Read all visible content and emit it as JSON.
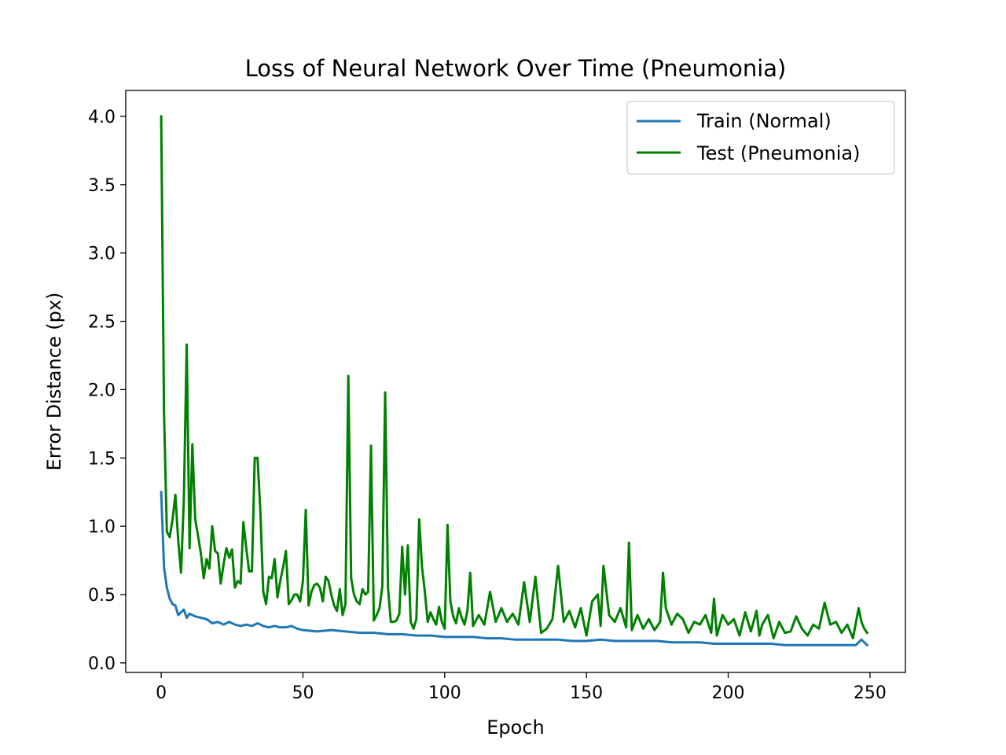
{
  "chart_data": {
    "type": "line",
    "title": "Loss of Neural Network Over Time (Pneumonia)",
    "xlabel": "Epoch",
    "ylabel": "Error Distance (px)",
    "xlim": [
      -12.5,
      262.5
    ],
    "ylim": [
      -0.07,
      4.19
    ],
    "xticks": [
      0,
      50,
      100,
      150,
      200,
      250
    ],
    "yticks": [
      0.0,
      0.5,
      1.0,
      1.5,
      2.0,
      2.5,
      3.0,
      3.5,
      4.0
    ],
    "xtick_labels": [
      "0",
      "50",
      "100",
      "150",
      "200",
      "250"
    ],
    "ytick_labels": [
      "0.0",
      "0.5",
      "1.0",
      "1.5",
      "2.0",
      "2.5",
      "3.0",
      "3.5",
      "4.0"
    ],
    "legend_position": "top-right",
    "series": [
      {
        "name": "Train (Normal)",
        "color": "#1f77b4",
        "x": [
          0,
          1,
          2,
          3,
          4,
          5,
          6,
          7,
          8,
          9,
          10,
          12,
          14,
          16,
          18,
          20,
          22,
          24,
          26,
          28,
          30,
          32,
          34,
          36,
          38,
          40,
          42,
          44,
          46,
          48,
          50,
          55,
          60,
          65,
          70,
          75,
          80,
          85,
          90,
          95,
          100,
          105,
          110,
          115,
          120,
          125,
          130,
          135,
          140,
          145,
          150,
          155,
          160,
          165,
          170,
          175,
          180,
          185,
          190,
          195,
          200,
          205,
          210,
          215,
          220,
          225,
          230,
          235,
          240,
          245,
          247,
          249
        ],
        "values": [
          1.25,
          0.7,
          0.55,
          0.47,
          0.43,
          0.42,
          0.35,
          0.37,
          0.39,
          0.33,
          0.36,
          0.34,
          0.33,
          0.32,
          0.29,
          0.3,
          0.28,
          0.3,
          0.28,
          0.27,
          0.28,
          0.27,
          0.29,
          0.27,
          0.26,
          0.27,
          0.26,
          0.26,
          0.27,
          0.25,
          0.24,
          0.23,
          0.24,
          0.23,
          0.22,
          0.22,
          0.21,
          0.21,
          0.2,
          0.2,
          0.19,
          0.19,
          0.19,
          0.18,
          0.18,
          0.17,
          0.17,
          0.17,
          0.17,
          0.16,
          0.16,
          0.17,
          0.16,
          0.16,
          0.16,
          0.16,
          0.15,
          0.15,
          0.15,
          0.14,
          0.14,
          0.14,
          0.14,
          0.14,
          0.13,
          0.13,
          0.13,
          0.13,
          0.13,
          0.13,
          0.17,
          0.13
        ]
      },
      {
        "name": "Test (Pneumonia)",
        "color": "#008000",
        "x": [
          0,
          1,
          2,
          3,
          4,
          5,
          6,
          7,
          8,
          9,
          10,
          11,
          12,
          13,
          14,
          15,
          16,
          17,
          18,
          19,
          20,
          21,
          22,
          23,
          24,
          25,
          26,
          27,
          28,
          29,
          30,
          31,
          32,
          33,
          34,
          35,
          36,
          37,
          38,
          39,
          40,
          41,
          42,
          43,
          44,
          45,
          46,
          47,
          48,
          49,
          50,
          51,
          52,
          53,
          54,
          55,
          56,
          57,
          58,
          59,
          60,
          61,
          62,
          63,
          64,
          65,
          66,
          67,
          68,
          69,
          70,
          71,
          72,
          73,
          74,
          75,
          76,
          77,
          78,
          79,
          80,
          81,
          82,
          83,
          84,
          85,
          86,
          87,
          88,
          89,
          90,
          91,
          92,
          93,
          94,
          95,
          96,
          97,
          98,
          99,
          100,
          101,
          102,
          103,
          104,
          105,
          106,
          107,
          108,
          109,
          110,
          112,
          114,
          116,
          118,
          120,
          122,
          124,
          126,
          128,
          130,
          132,
          134,
          136,
          138,
          140,
          142,
          144,
          146,
          148,
          150,
          152,
          154,
          155,
          156,
          158,
          160,
          162,
          164,
          165,
          166,
          168,
          170,
          172,
          174,
          176,
          177,
          178,
          180,
          182,
          184,
          186,
          188,
          190,
          192,
          194,
          195,
          196,
          198,
          200,
          202,
          204,
          206,
          208,
          210,
          211,
          212,
          214,
          216,
          218,
          220,
          222,
          224,
          226,
          228,
          230,
          232,
          234,
          236,
          238,
          240,
          242,
          244,
          246,
          247,
          248,
          249
        ],
        "values": [
          4.0,
          1.83,
          0.96,
          0.92,
          1.05,
          1.23,
          0.9,
          0.66,
          1.2,
          2.33,
          0.84,
          1.6,
          1.05,
          0.93,
          0.8,
          0.62,
          0.76,
          0.69,
          1.0,
          0.82,
          0.8,
          0.58,
          0.72,
          0.84,
          0.77,
          0.83,
          0.55,
          0.6,
          0.58,
          1.03,
          0.84,
          0.67,
          0.67,
          1.5,
          1.5,
          1.1,
          0.52,
          0.43,
          0.63,
          0.62,
          0.76,
          0.48,
          0.6,
          0.7,
          0.82,
          0.43,
          0.46,
          0.5,
          0.5,
          0.45,
          0.6,
          1.12,
          0.42,
          0.52,
          0.57,
          0.58,
          0.55,
          0.45,
          0.63,
          0.6,
          0.5,
          0.42,
          0.38,
          0.54,
          0.35,
          0.43,
          2.1,
          0.62,
          0.5,
          0.45,
          0.43,
          0.54,
          0.5,
          0.52,
          1.59,
          0.31,
          0.35,
          0.4,
          0.56,
          1.98,
          0.55,
          0.3,
          0.3,
          0.31,
          0.36,
          0.85,
          0.5,
          0.86,
          0.3,
          0.25,
          0.32,
          1.05,
          0.7,
          0.52,
          0.3,
          0.37,
          0.32,
          0.28,
          0.41,
          0.3,
          0.25,
          1.01,
          0.45,
          0.34,
          0.29,
          0.4,
          0.33,
          0.28,
          0.38,
          0.66,
          0.27,
          0.35,
          0.28,
          0.52,
          0.3,
          0.4,
          0.3,
          0.36,
          0.28,
          0.59,
          0.3,
          0.63,
          0.22,
          0.25,
          0.32,
          0.71,
          0.3,
          0.38,
          0.26,
          0.4,
          0.2,
          0.45,
          0.5,
          0.27,
          0.71,
          0.35,
          0.3,
          0.4,
          0.26,
          0.88,
          0.24,
          0.35,
          0.25,
          0.32,
          0.24,
          0.3,
          0.66,
          0.4,
          0.28,
          0.36,
          0.32,
          0.22,
          0.3,
          0.28,
          0.35,
          0.22,
          0.47,
          0.2,
          0.35,
          0.28,
          0.32,
          0.2,
          0.37,
          0.23,
          0.38,
          0.2,
          0.28,
          0.35,
          0.18,
          0.3,
          0.22,
          0.23,
          0.34,
          0.25,
          0.2,
          0.28,
          0.25,
          0.44,
          0.28,
          0.3,
          0.22,
          0.28,
          0.18,
          0.4,
          0.3,
          0.25,
          0.22
        ]
      }
    ]
  }
}
